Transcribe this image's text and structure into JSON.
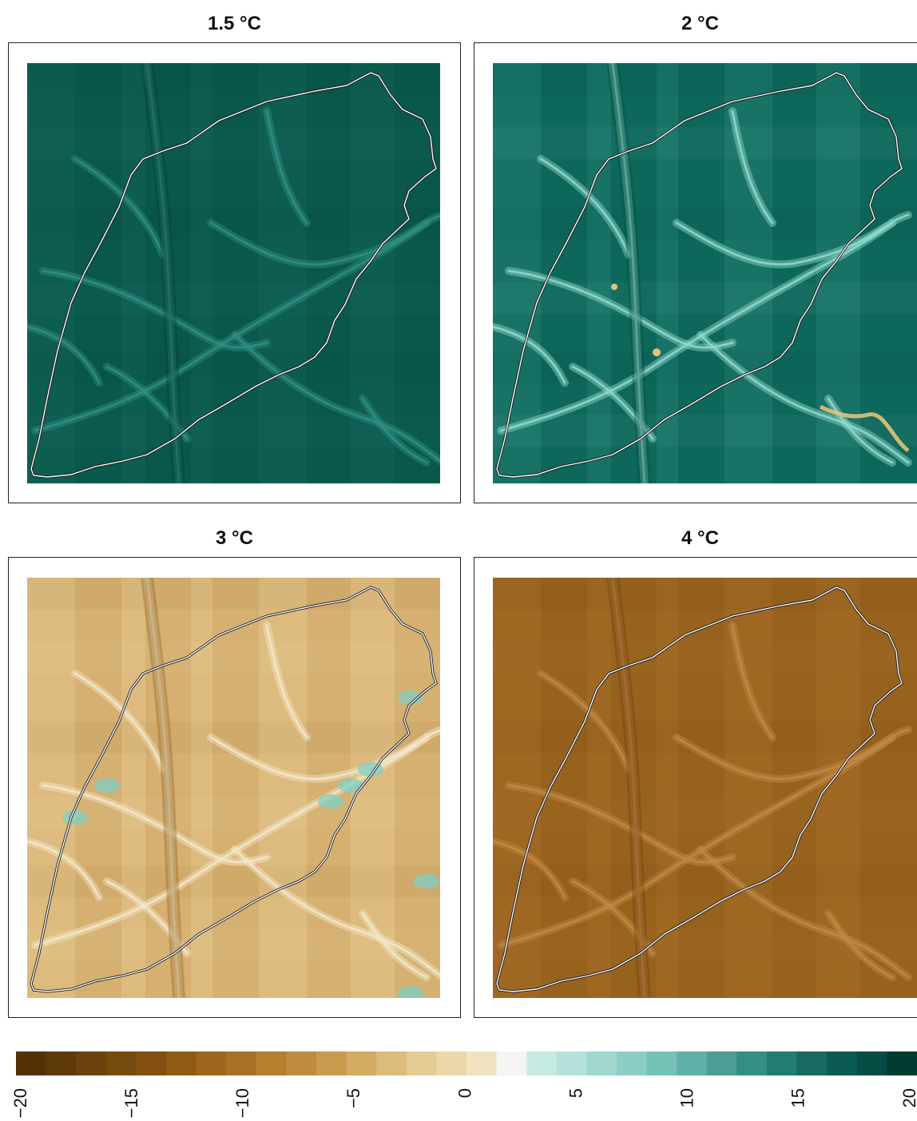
{
  "chart_data": [
    {
      "type": "heatmap",
      "title": "1.5 °C",
      "description_level": 17,
      "colors": {
        "base": "#0b5a4e",
        "light": "#2f8f80",
        "dark": "#053c33"
      }
    },
    {
      "type": "heatmap",
      "title": "2 °C",
      "description_level": 14,
      "colors": {
        "base": "#0f6a5d",
        "light": "#8fd9cb",
        "dark": "#064a3f",
        "hot": "#e6c07a"
      }
    },
    {
      "type": "heatmap",
      "title": "3 °C",
      "description_level": -6,
      "colors": {
        "base": "#dcb878",
        "light": "#f3e6c8",
        "dark": "#8a5a1a",
        "cool": "#7fcfc6"
      }
    },
    {
      "type": "heatmap",
      "title": "4 °C",
      "description_level": -15,
      "colors": {
        "base": "#9c6420",
        "light": "#c08a45",
        "dark": "#6a3e0c"
      }
    }
  ],
  "colorbar": {
    "min": -20,
    "max": 20,
    "ticks": [
      "−20",
      "−15",
      "−10",
      "−5",
      "0",
      "5",
      "10",
      "15",
      "20"
    ],
    "colors": [
      "#543005",
      "#5f3a09",
      "#6b420c",
      "#774b10",
      "#834f10",
      "#8f5a16",
      "#9c661c",
      "#a87224",
      "#b47f2f",
      "#bf8c3e",
      "#c99b4f",
      "#d3ab64",
      "#dcbb7c",
      "#e4ca93",
      "#ebd7aa",
      "#f1e3c0",
      "#f5f5f5",
      "#c7eae5",
      "#b5e2da",
      "#a0d8ce",
      "#8ccec3",
      "#76c1b6",
      "#5fb0a6",
      "#4a9e94",
      "#378c83",
      "#257b72",
      "#166a62",
      "#0b5b53",
      "#054c45",
      "#003c30"
    ]
  }
}
